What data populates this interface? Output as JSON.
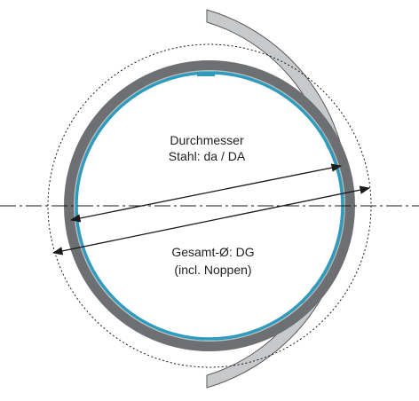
{
  "labels": {
    "steel_diameter_line1": "Durchmesser",
    "steel_diameter_line2": "Stahl: da / DA",
    "total_diameter_line1": "Gesamt-Ø: DG",
    "total_diameter_line2": "(incl. Noppen)"
  },
  "colors": {
    "steel_ring": "#6d6f72",
    "steel_ring_inner": "#b9bbbd",
    "coating": "#2e9bbd",
    "outer_shell": "#c8c9cb",
    "outer_shell_edge": "#5a5a5a",
    "dimension_lines": "#1a1a1a",
    "centerline": "#1a1a1a"
  }
}
